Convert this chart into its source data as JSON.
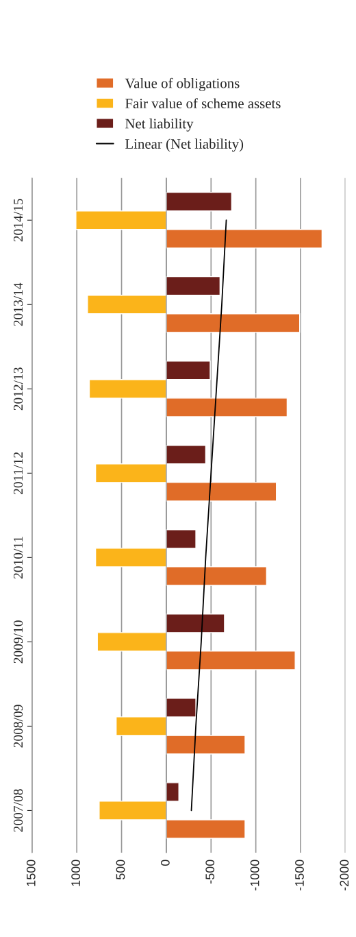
{
  "chart_data": {
    "type": "bar",
    "orientation": "horizontal",
    "categories": [
      "2014/15",
      "2013/14",
      "2012/13",
      "2011/12",
      "2010/11",
      "2009/10",
      "2008/09",
      "2007/08"
    ],
    "series": [
      {
        "name": "Value of obligations",
        "color": "#e06c28",
        "values": [
          -1740,
          -1490,
          -1350,
          -1230,
          -1120,
          -1440,
          -880,
          -880
        ]
      },
      {
        "name": "Fair value of scheme assets",
        "color": "#fbb41a",
        "values": [
          1010,
          880,
          860,
          790,
          790,
          770,
          560,
          750
        ]
      },
      {
        "name": "Net liability",
        "color": "#6b1e1a",
        "values": [
          -730,
          -600,
          -490,
          -440,
          -330,
          -650,
          -330,
          -140
        ]
      },
      {
        "name": "Linear (Net liability)",
        "type": "line",
        "color": "#000000",
        "values": [
          -670,
          -620,
          -560,
          -500,
          -440,
          -390,
          -330,
          -280
        ]
      }
    ],
    "xlim": [
      1500,
      -2000
    ],
    "xticks": [
      1500,
      1000,
      500,
      0,
      -500,
      -1000,
      -1500,
      -2000
    ],
    "grid": "x",
    "legend": "top"
  }
}
